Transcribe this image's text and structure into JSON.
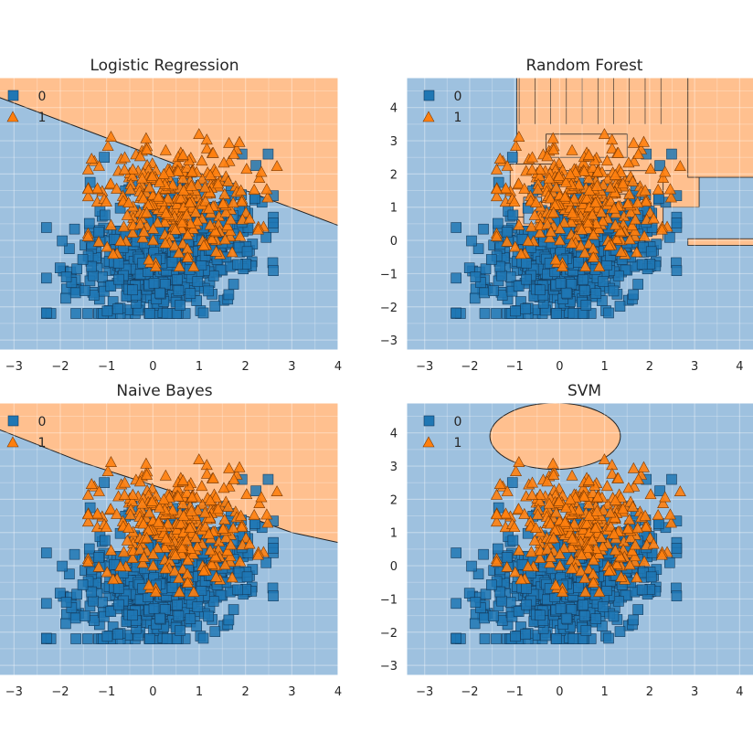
{
  "chart_data": [
    {
      "type": "scatter",
      "title": "Logistic Regression",
      "classes": [
        "0",
        "1"
      ],
      "xlim": [
        -3.5,
        4.0
      ],
      "ylim": [
        -3.3,
        4.9
      ],
      "xticks": [
        "-3",
        "-2",
        "-1",
        "0",
        "1",
        "2",
        "3",
        "4"
      ],
      "yticks": [
        "-3",
        "-2",
        "-1",
        "0",
        "1",
        "2",
        "3",
        "4"
      ],
      "boundary": {
        "kind": "line",
        "from": [
          -3.5,
          4.4
        ],
        "to": [
          4.0,
          0.45
        ]
      },
      "show_yticks": false
    },
    {
      "type": "scatter",
      "title": "Random Forest",
      "classes": [
        "0",
        "1"
      ],
      "xlim": [
        -3.4,
        4.5
      ],
      "ylim": [
        -3.3,
        4.9
      ],
      "xticks": [
        "-3",
        "-2",
        "-1",
        "0",
        "1",
        "2",
        "3",
        "4"
      ],
      "yticks": [
        "-3",
        "-2",
        "-1",
        "0",
        "1",
        "2",
        "3",
        "4"
      ],
      "boundary": {
        "kind": "forest"
      },
      "show_yticks": true
    },
    {
      "type": "scatter",
      "title": "Naive Bayes",
      "classes": [
        "0",
        "1"
      ],
      "xlim": [
        -3.5,
        4.0
      ],
      "ylim": [
        -3.3,
        4.9
      ],
      "xticks": [
        "-3",
        "-2",
        "-1",
        "0",
        "1",
        "2",
        "3",
        "4"
      ],
      "yticks": [
        "-3",
        "-2",
        "-1",
        "0",
        "1",
        "2",
        "3",
        "4"
      ],
      "boundary": {
        "kind": "curve",
        "points": [
          [
            -3.5,
            4.2
          ],
          [
            -1.5,
            3.1
          ],
          [
            0.5,
            2.2
          ],
          [
            2.0,
            1.5
          ],
          [
            3.0,
            1.0
          ],
          [
            4.0,
            0.7
          ]
        ]
      },
      "show_yticks": false
    },
    {
      "type": "scatter",
      "title": "SVM",
      "classes": [
        "0",
        "1"
      ],
      "xlim": [
        -3.4,
        4.5
      ],
      "ylim": [
        -3.3,
        4.9
      ],
      "xticks": [
        "-3",
        "-2",
        "-1",
        "0",
        "1",
        "2",
        "3",
        "4"
      ],
      "yticks": [
        "-3",
        "-2",
        "-1",
        "0",
        "1",
        "2",
        "3",
        "4"
      ],
      "boundary": {
        "kind": "ellipse",
        "center": [
          -0.1,
          3.9
        ],
        "rx": 1.45,
        "ry": 1.0
      },
      "show_yticks": true
    }
  ],
  "class_colors": {
    "0": "#1f77b4",
    "1": "#ff7f0e"
  },
  "region_colors": {
    "0": "#9ec1df",
    "1": "#ffc08f"
  }
}
